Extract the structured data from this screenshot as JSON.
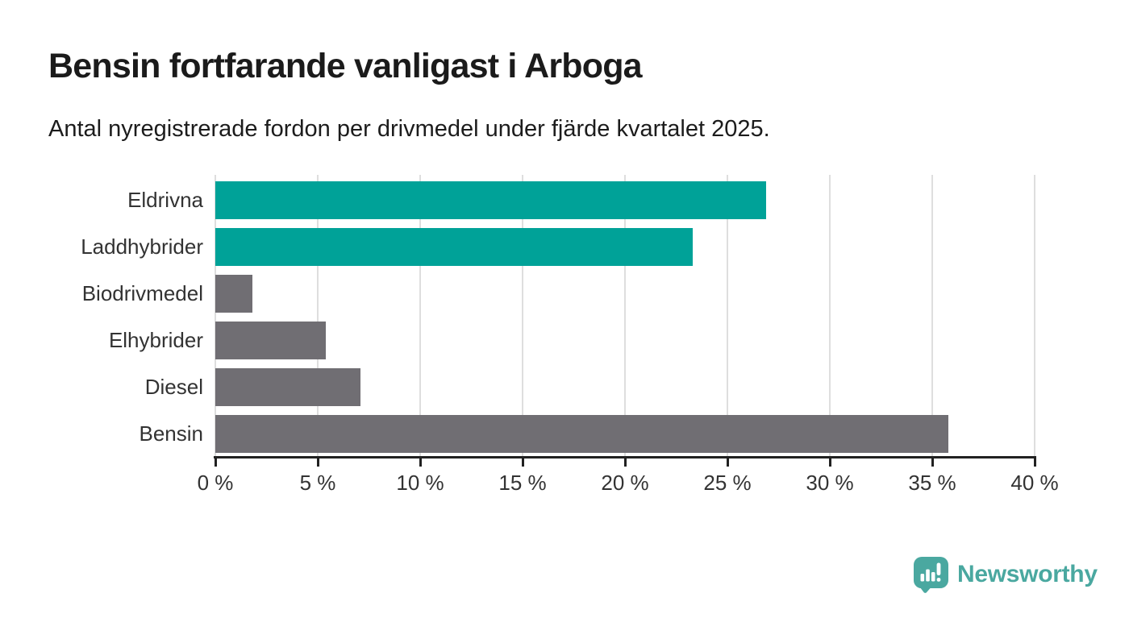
{
  "header": {
    "title": "Bensin fortfarande vanligast i Arboga",
    "subtitle": "Antal nyregistrerade fordon per drivmedel under fjärde kvartalet 2025."
  },
  "chart_data": {
    "type": "bar",
    "orientation": "horizontal",
    "title": "Bensin fortfarande vanligast i Arboga",
    "subtitle": "Antal nyregistrerade fordon per drivmedel under fjärde kvartalet 2025.",
    "categories": [
      "Eldrivna",
      "Laddhybrider",
      "Biodrivmedel",
      "Elhybrider",
      "Diesel",
      "Bensin"
    ],
    "values": [
      26.9,
      23.3,
      1.8,
      5.4,
      7.1,
      35.8
    ],
    "unit": "%",
    "xlim": [
      0,
      40
    ],
    "x_ticks": [
      0,
      5,
      10,
      15,
      20,
      25,
      30,
      35,
      40
    ],
    "x_tick_labels": [
      "0 %",
      "5 %",
      "10 %",
      "15 %",
      "20 %",
      "25 %",
      "30 %",
      "35 %",
      "40 %"
    ],
    "grid": "vertical-light",
    "legend": "none",
    "xlabel": "",
    "ylabel": "",
    "bar_colors": [
      "#00a298",
      "#00a298",
      "#706e73",
      "#706e73",
      "#706e73",
      "#706e73"
    ],
    "highlight_color": "#00a298",
    "default_color": "#706e73"
  },
  "branding": {
    "wordmark": "Newsworthy",
    "logo_color": "#4aa8a0",
    "icon": "newsworthy-pin-chart-icon"
  },
  "colors": {
    "background": "#ffffff",
    "title_text": "#1b1b1b",
    "axis": "#212121",
    "gridline": "#dedede",
    "label_text": "#333333"
  }
}
